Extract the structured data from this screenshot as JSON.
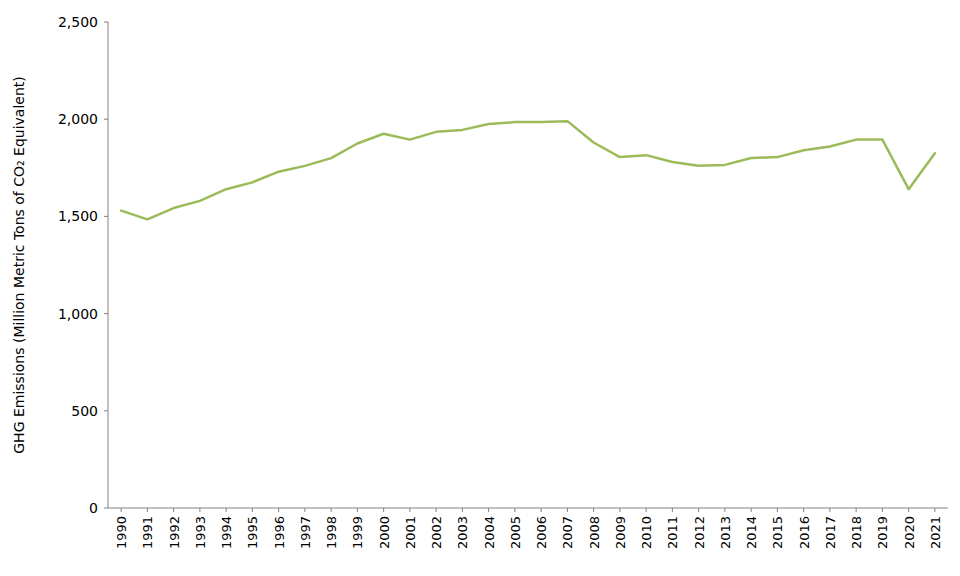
{
  "chart_data": {
    "type": "line",
    "y_label": "GHG Emissions (Million Metric Tons of CO₂ Equivalent)",
    "categories": [
      "1990",
      "1991",
      "1992",
      "1993",
      "1994",
      "1995",
      "1996",
      "1997",
      "1998",
      "1999",
      "2000",
      "2001",
      "2002",
      "2003",
      "2004",
      "2005",
      "2006",
      "2007",
      "2008",
      "2009",
      "2010",
      "2011",
      "2012",
      "2013",
      "2014",
      "2015",
      "2016",
      "2017",
      "2018",
      "2019",
      "2020",
      "2021"
    ],
    "values": [
      1530,
      1485,
      1543,
      1580,
      1640,
      1675,
      1730,
      1760,
      1800,
      1875,
      1925,
      1895,
      1935,
      1945,
      1975,
      1985,
      1985,
      1990,
      1880,
      1805,
      1815,
      1780,
      1760,
      1765,
      1800,
      1805,
      1840,
      1860,
      1895,
      1895,
      1640,
      1825
    ],
    "color": "#9bbb59",
    "ylim": [
      0,
      2500
    ],
    "yticks": [
      0,
      500,
      {
        "value": 1000,
        "label": "1,000"
      },
      {
        "value": 1500,
        "label": "1,500"
      },
      {
        "value": 2000,
        "label": "2,000"
      },
      {
        "value": 2500,
        "label": "2,500"
      }
    ],
    "grid": false
  }
}
